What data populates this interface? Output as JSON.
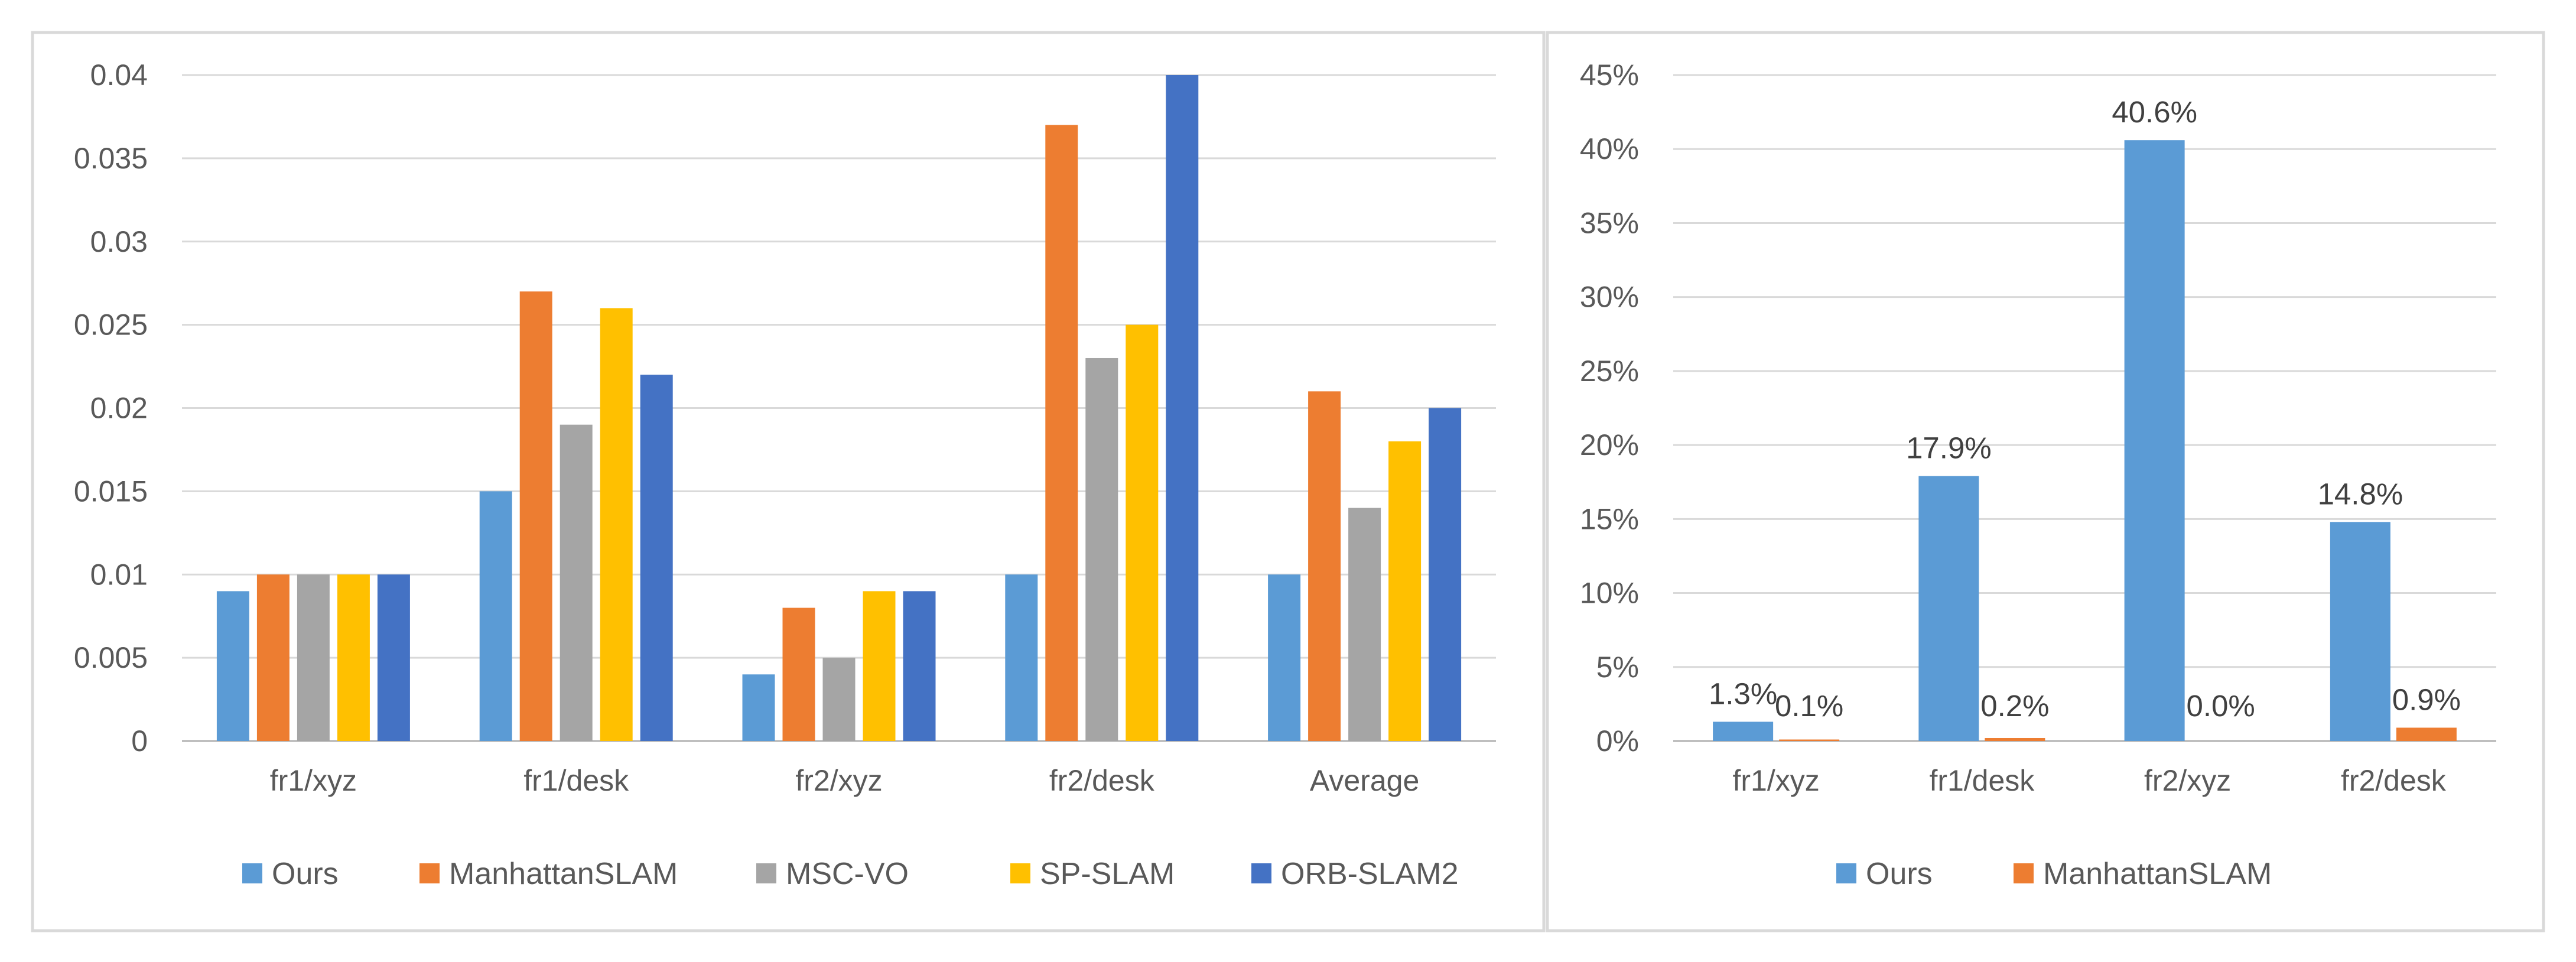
{
  "chart_data": [
    {
      "type": "bar",
      "title": "",
      "xlabel": "",
      "ylabel": "",
      "categories": [
        "fr1/xyz",
        "fr1/desk",
        "fr2/xyz",
        "fr2/desk",
        "Average"
      ],
      "series": [
        {
          "name": "Ours",
          "color": "#5B9BD5",
          "values": [
            0.009,
            0.015,
            0.004,
            0.01,
            0.01
          ]
        },
        {
          "name": "ManhattanSLAM",
          "color": "#ED7D31",
          "values": [
            0.01,
            0.027,
            0.008,
            0.037,
            0.021
          ]
        },
        {
          "name": "MSC-VO",
          "color": "#A5A5A5",
          "values": [
            0.01,
            0.019,
            0.005,
            0.023,
            0.014
          ]
        },
        {
          "name": "SP-SLAM",
          "color": "#FFC000",
          "values": [
            0.01,
            0.026,
            0.009,
            0.025,
            0.018
          ]
        },
        {
          "name": "ORB-SLAM2",
          "color": "#4472C4",
          "values": [
            0.01,
            0.022,
            0.009,
            0.04,
            0.02
          ]
        }
      ],
      "ylim": [
        0,
        0.04
      ],
      "yticks": [
        0,
        0.005,
        0.01,
        0.015,
        0.02,
        0.025,
        0.03,
        0.035,
        0.04
      ],
      "ytick_labels": [
        "0",
        "0.005",
        "0.01",
        "0.015",
        "0.02",
        "0.025",
        "0.03",
        "0.035",
        "0.04"
      ],
      "grid": true,
      "legend": "bottom"
    },
    {
      "type": "bar",
      "title": "",
      "xlabel": "",
      "ylabel": "",
      "categories": [
        "fr1/xyz",
        "fr1/desk",
        "fr2/xyz",
        "fr2/desk"
      ],
      "series": [
        {
          "name": "Ours",
          "color": "#5B9BD5",
          "values": [
            1.3,
            17.9,
            40.6,
            14.8
          ],
          "labels": [
            "1.3%",
            "17.9%",
            "40.6%",
            "14.8%"
          ]
        },
        {
          "name": "ManhattanSLAM",
          "color": "#ED7D31",
          "values": [
            0.1,
            0.2,
            0.0,
            0.9
          ],
          "labels": [
            "0.1%",
            "0.2%",
            "0.0%",
            "0.9%"
          ]
        }
      ],
      "ylim": [
        0,
        45
      ],
      "yticks": [
        0,
        5,
        10,
        15,
        20,
        25,
        30,
        35,
        40,
        45
      ],
      "ytick_labels": [
        "0%",
        "5%",
        "10%",
        "15%",
        "20%",
        "25%",
        "30%",
        "35%",
        "40%",
        "45%"
      ],
      "grid": true,
      "legend": "bottom"
    }
  ]
}
